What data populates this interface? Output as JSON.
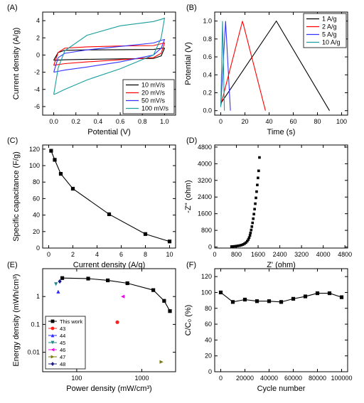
{
  "chart_data": [
    {
      "panel_label": "(A)",
      "type": "line",
      "xlabel": "Potential (V)",
      "ylabel": "Current density (A/g)",
      "xlim": [
        -0.1,
        1.1
      ],
      "ylim": [
        -7,
        5
      ],
      "xticks": [
        0.0,
        0.2,
        0.4,
        0.6,
        0.8,
        1.0
      ],
      "xtick_labels": [
        "0.0",
        "0.2",
        "0.4",
        "0.6",
        "0.8",
        "1.0"
      ],
      "yticks": [
        -6,
        -4,
        -2,
        0,
        2,
        4
      ],
      "ytick_labels": [
        "-6",
        "-4",
        "-2",
        "0",
        "2",
        "4"
      ],
      "legend_position": "bottom-right",
      "series": [
        {
          "name": "10 mV/s",
          "color": "#000000",
          "points": [
            [
              0.0,
              -0.6
            ],
            [
              0.04,
              0.3
            ],
            [
              0.1,
              0.55
            ],
            [
              0.3,
              0.6
            ],
            [
              0.6,
              0.62
            ],
            [
              0.9,
              0.65
            ],
            [
              0.98,
              0.8
            ],
            [
              1.0,
              0.8
            ],
            [
              0.97,
              -0.1
            ],
            [
              0.9,
              -0.4
            ],
            [
              0.6,
              -0.45
            ],
            [
              0.3,
              -0.5
            ],
            [
              0.1,
              -0.55
            ],
            [
              0.02,
              -0.6
            ],
            [
              0.0,
              -0.6
            ]
          ]
        },
        {
          "name": "20 mV/s",
          "color": "#ff0000",
          "points": [
            [
              0.0,
              -1.2
            ],
            [
              0.04,
              0.3
            ],
            [
              0.1,
              0.8
            ],
            [
              0.3,
              0.95
            ],
            [
              0.6,
              1.05
            ],
            [
              0.9,
              1.1
            ],
            [
              0.98,
              1.35
            ],
            [
              1.0,
              1.4
            ],
            [
              0.97,
              0.2
            ],
            [
              0.9,
              -0.3
            ],
            [
              0.6,
              -0.55
            ],
            [
              0.3,
              -0.8
            ],
            [
              0.1,
              -1.0
            ],
            [
              0.02,
              -1.15
            ],
            [
              0.0,
              -1.2
            ]
          ]
        },
        {
          "name": "50 mV/s",
          "color": "#3333ff",
          "points": [
            [
              0.0,
              -2.0
            ],
            [
              0.04,
              -0.3
            ],
            [
              0.1,
              0.2
            ],
            [
              0.3,
              0.6
            ],
            [
              0.6,
              1.0
            ],
            [
              0.9,
              1.4
            ],
            [
              0.98,
              1.75
            ],
            [
              1.0,
              1.8
            ],
            [
              0.97,
              0.8
            ],
            [
              0.9,
              0.0
            ],
            [
              0.6,
              -0.8
            ],
            [
              0.3,
              -1.4
            ],
            [
              0.1,
              -1.75
            ],
            [
              0.02,
              -1.95
            ],
            [
              0.0,
              -2.0
            ]
          ]
        },
        {
          "name": "100 mV/s",
          "color": "#1a9e9e",
          "points": [
            [
              0.0,
              -4.6
            ],
            [
              0.04,
              -1.5
            ],
            [
              0.1,
              0.5
            ],
            [
              0.3,
              2.3
            ],
            [
              0.6,
              3.4
            ],
            [
              0.9,
              3.9
            ],
            [
              0.98,
              4.2
            ],
            [
              1.0,
              4.3
            ],
            [
              0.97,
              2.0
            ],
            [
              0.9,
              0.0
            ],
            [
              0.6,
              -1.6
            ],
            [
              0.3,
              -2.9
            ],
            [
              0.1,
              -4.0
            ],
            [
              0.02,
              -4.5
            ],
            [
              0.0,
              -4.6
            ]
          ]
        }
      ]
    },
    {
      "panel_label": "(B)",
      "type": "line",
      "xlabel": "Time (s)",
      "ylabel": "Potential (V)",
      "xlim": [
        -5,
        105
      ],
      "ylim": [
        -0.05,
        1.1
      ],
      "xticks": [
        0,
        20,
        40,
        60,
        80,
        100
      ],
      "xtick_labels": [
        "0",
        "20",
        "40",
        "60",
        "80",
        "100"
      ],
      "yticks": [
        0.0,
        0.2,
        0.4,
        0.6,
        0.8,
        1.0
      ],
      "ytick_labels": [
        "0.0",
        "0.2",
        "0.4",
        "0.6",
        "0.8",
        "1.0"
      ],
      "legend_position": "top-right",
      "series": [
        {
          "name": "1 A/g",
          "color": "#000000",
          "points": [
            [
              0,
              0.08
            ],
            [
              46,
              1.0
            ],
            [
              90,
              0.0
            ]
          ]
        },
        {
          "name": "2 A/g",
          "color": "#ff0000",
          "points": [
            [
              0,
              0.06
            ],
            [
              18,
              1.0
            ],
            [
              37,
              0.0
            ]
          ]
        },
        {
          "name": "5 A/g",
          "color": "#3333ff",
          "points": [
            [
              0,
              0.05
            ],
            [
              4,
              1.0
            ],
            [
              8,
              0.0
            ]
          ]
        },
        {
          "name": "10 A/g",
          "color": "#1a9e9e",
          "points": [
            [
              0,
              0.04
            ],
            [
              1.5,
              1.0
            ],
            [
              3,
              0.0
            ]
          ]
        }
      ]
    },
    {
      "panel_label": "(C)",
      "type": "line",
      "xlabel": "Current density (A/g)",
      "ylabel": "Specific capacitance (F/g)",
      "xlim": [
        -0.5,
        10.5
      ],
      "ylim": [
        0,
        125
      ],
      "xticks": [
        0,
        2,
        4,
        6,
        8,
        10
      ],
      "xtick_labels": [
        "0",
        "2",
        "4",
        "6",
        "8",
        "10"
      ],
      "yticks": [
        0,
        20,
        40,
        60,
        80,
        100,
        120
      ],
      "ytick_labels": [
        "0",
        "20",
        "40",
        "60",
        "80",
        "100",
        "120"
      ],
      "series": [
        {
          "name": "",
          "color": "#000000",
          "points": [
            [
              0.2,
              118
            ],
            [
              0.5,
              107
            ],
            [
              1,
              90
            ],
            [
              2,
              72
            ],
            [
              5,
              41
            ],
            [
              8,
              17
            ],
            [
              10,
              8
            ]
          ]
        }
      ]
    },
    {
      "panel_label": "(D)",
      "type": "scatter",
      "xlabel": "Z' (ohm)",
      "ylabel": "-Z'' (ohm)",
      "xlim": [
        0,
        4900
      ],
      "ylim": [
        -50,
        4900
      ],
      "xticks": [
        0,
        800,
        1600,
        2400,
        3200,
        4000,
        4800
      ],
      "xtick_labels": [
        "0",
        "800",
        "1600",
        "2400",
        "3200",
        "4000",
        "4800"
      ],
      "yticks": [
        0,
        800,
        1600,
        2400,
        3200,
        4000,
        4800
      ],
      "ytick_labels": [
        "0",
        "800",
        "1600",
        "2400",
        "3200",
        "4000",
        "4800"
      ],
      "series": [
        {
          "name": "",
          "color": "#000000",
          "points": [
            [
              620,
              20
            ],
            [
              680,
              25
            ],
            [
              740,
              35
            ],
            [
              800,
              45
            ],
            [
              860,
              55
            ],
            [
              920,
              70
            ],
            [
              980,
              90
            ],
            [
              1040,
              120
            ],
            [
              1100,
              160
            ],
            [
              1150,
              210
            ],
            [
              1200,
              280
            ],
            [
              1240,
              360
            ],
            [
              1270,
              450
            ],
            [
              1300,
              560
            ],
            [
              1320,
              680
            ],
            [
              1345,
              820
            ],
            [
              1370,
              980
            ],
            [
              1395,
              1160
            ],
            [
              1420,
              1360
            ],
            [
              1445,
              1580
            ],
            [
              1470,
              1820
            ],
            [
              1495,
              2080
            ],
            [
              1520,
              2360
            ],
            [
              1545,
              2660
            ],
            [
              1570,
              2980
            ],
            [
              1595,
              3320
            ],
            [
              1620,
              3660
            ],
            [
              1650,
              4300
            ]
          ]
        }
      ]
    },
    {
      "panel_label": "(E)",
      "type": "scatter",
      "xlabel": "Power density (mW/cm³)",
      "ylabel": "Energy density (mWh/cm³)",
      "xscale": "log",
      "yscale": "log",
      "xlim": [
        30,
        3300
      ],
      "ylim": [
        0.002,
        10
      ],
      "xticks": [
        100,
        1000
      ],
      "xtick_labels": [
        "100",
        "1000"
      ],
      "yticks": [
        0.01,
        0.1,
        1
      ],
      "ytick_labels": [
        "0.01",
        "0.1",
        "1"
      ],
      "legend_position": "bottom-left",
      "series": [
        {
          "name": "This work",
          "color": "#000000",
          "marker": "square",
          "line": true,
          "points": [
            [
              60,
              4.6
            ],
            [
              150,
              4.4
            ],
            [
              300,
              3.8
            ],
            [
              600,
              3.0
            ],
            [
              1500,
              1.7
            ],
            [
              2200,
              0.7
            ],
            [
              2700,
              0.3
            ]
          ]
        },
        {
          "name": "43",
          "color": "#ff2020",
          "marker": "circle",
          "points": [
            [
              420,
              0.12
            ]
          ]
        },
        {
          "name": "44",
          "color": "#2a2aff",
          "marker": "triangle-up",
          "points": [
            [
              52,
              1.5
            ]
          ]
        },
        {
          "name": "45",
          "color": "#1a8a8a",
          "marker": "triangle-down",
          "points": [
            [
              48,
              2.8
            ]
          ]
        },
        {
          "name": "46",
          "color": "#ee00ee",
          "marker": "triangle-left",
          "points": [
            [
              510,
              1.0
            ]
          ]
        },
        {
          "name": "47",
          "color": "#7a7a10",
          "marker": "triangle-right",
          "points": [
            [
              2000,
              0.0045
            ]
          ]
        },
        {
          "name": "48",
          "color": "#1a1a8a",
          "marker": "diamond",
          "points": [
            [
              55,
              3.5
            ]
          ]
        }
      ]
    },
    {
      "panel_label": "(F)",
      "type": "line",
      "xlabel": "Cycle number",
      "ylabel": "C/C₀ (%)",
      "xlim": [
        -5000,
        105000
      ],
      "ylim": [
        0,
        130
      ],
      "xticks": [
        0,
        20000,
        40000,
        60000,
        80000,
        100000
      ],
      "xtick_labels": [
        "0",
        "20000",
        "40000",
        "60000",
        "80000",
        "100000"
      ],
      "yticks": [
        0,
        20,
        40,
        60,
        80,
        100,
        120
      ],
      "ytick_labels": [
        "0",
        "20",
        "40",
        "60",
        "80",
        "100",
        "120"
      ],
      "series": [
        {
          "name": "",
          "color": "#000000",
          "points": [
            [
              0,
              100
            ],
            [
              10000,
              88
            ],
            [
              20000,
              91
            ],
            [
              30000,
              89
            ],
            [
              40000,
              89
            ],
            [
              50000,
              88
            ],
            [
              60000,
              92
            ],
            [
              70000,
              95
            ],
            [
              80000,
              99
            ],
            [
              90000,
              99
            ],
            [
              100000,
              94
            ]
          ]
        }
      ]
    }
  ]
}
